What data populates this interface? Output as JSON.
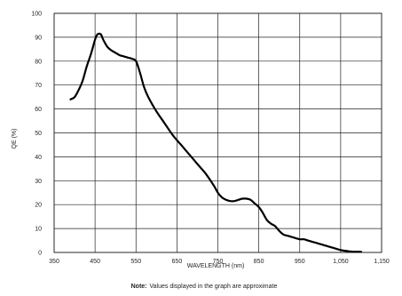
{
  "chart_data": {
    "type": "line",
    "xlabel": "WAVELENGTH (nm)",
    "ylabel": "QE (%)",
    "xlim": [
      350,
      1150
    ],
    "ylim": [
      0,
      100
    ],
    "x_ticks": [
      350,
      450,
      550,
      650,
      750,
      850,
      950,
      1050,
      1150
    ],
    "x_tick_labels": [
      "350",
      "450",
      "550",
      "650",
      "750",
      "850",
      "950",
      "1,050",
      "1,150"
    ],
    "y_ticks": [
      0,
      10,
      20,
      30,
      40,
      50,
      60,
      70,
      80,
      90,
      100
    ],
    "y_tick_labels": [
      "0",
      "10",
      "20",
      "30",
      "40",
      "50",
      "60",
      "70",
      "80",
      "90",
      "100"
    ],
    "grid": true,
    "series": [
      {
        "x": [
          390,
          400,
          410,
          420,
          430,
          440,
          450,
          455,
          460,
          465,
          470,
          480,
          490,
          500,
          510,
          520,
          530,
          540,
          550,
          560,
          570,
          580,
          600,
          620,
          640,
          660,
          680,
          700,
          720,
          740,
          750,
          760,
          770,
          780,
          790,
          800,
          810,
          820,
          830,
          840,
          850,
          860,
          870,
          880,
          890,
          900,
          910,
          920,
          930,
          940,
          950,
          960,
          970,
          980,
          990,
          1000,
          1010,
          1020,
          1030,
          1040,
          1050,
          1060,
          1070,
          1080,
          1090,
          1100
        ],
        "y": [
          64,
          65,
          68,
          72,
          78,
          83,
          89,
          91,
          91.5,
          91,
          89,
          86,
          84.5,
          83.5,
          82.5,
          82,
          81.5,
          81,
          80,
          75,
          69,
          65,
          59,
          54,
          49,
          45,
          41,
          37,
          33,
          28,
          25,
          23,
          22,
          21.5,
          21.5,
          22,
          22.5,
          22.5,
          22,
          20.5,
          19,
          16.5,
          13.5,
          12,
          11,
          9,
          7.5,
          7,
          6.5,
          6,
          5.5,
          5.5,
          5,
          4.5,
          4,
          3.5,
          3,
          2.5,
          2,
          1.5,
          1,
          0.7,
          0.5,
          0.3,
          0.3,
          0.3
        ]
      }
    ]
  },
  "note": {
    "label": "Note:",
    "text": "Values displayed in the graph are approximate"
  }
}
